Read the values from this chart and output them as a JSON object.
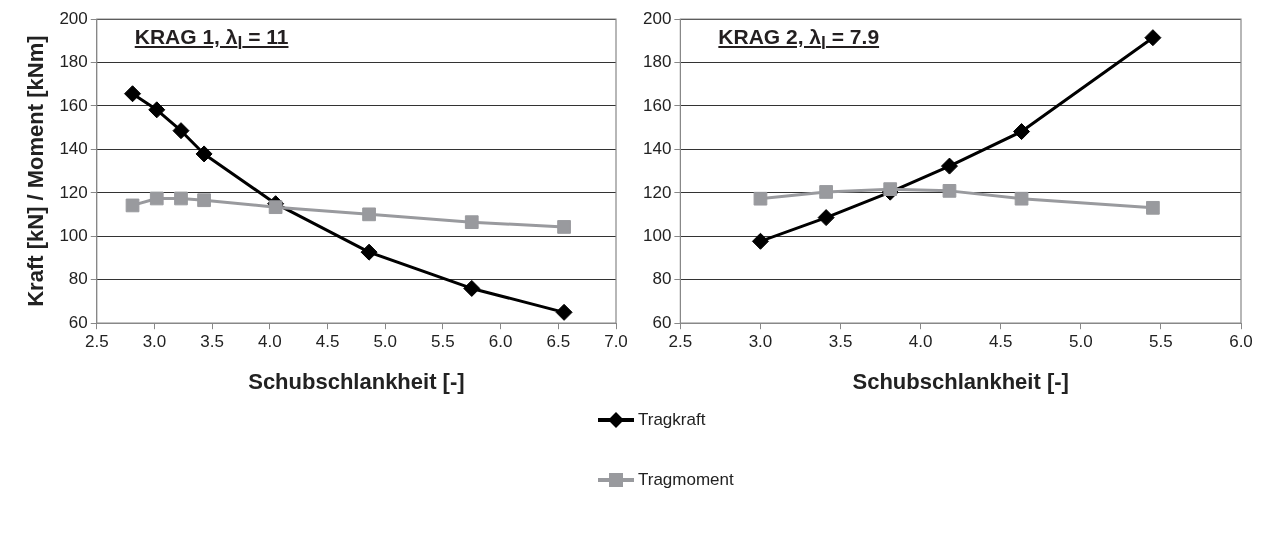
{
  "chart_data": [
    {
      "type": "line",
      "title": "KRAG 1, λ$_{l}$ = 11",
      "xlabel": "Schubschlankheit [-]",
      "ylabel": "Kraft [kN] / Moment [kNm]",
      "xlim": [
        2.5,
        7.0
      ],
      "xticks": [
        {
          "value": 2.5,
          "label": "2.5"
        },
        {
          "value": 3,
          "label": "3.0"
        },
        {
          "value": 3.5,
          "label": "3.5"
        },
        {
          "value": 4,
          "label": "4.0"
        },
        {
          "value": 4.5,
          "label": "4.5"
        },
        {
          "value": 5,
          "label": "5.0"
        },
        {
          "value": 5.5,
          "label": "5.5"
        },
        {
          "value": 6,
          "label": "6.0"
        },
        {
          "value": 6.5,
          "label": "6.5"
        },
        {
          "value": 7,
          "label": "7.0"
        }
      ],
      "ylim": [
        60,
        200
      ],
      "yticks": [
        60,
        80,
        100,
        120,
        140,
        160,
        180,
        200
      ],
      "grid": "y",
      "legend": "bottom",
      "line_style": "solid",
      "series": [
        {
          "name": "Tragkraft",
          "color": "#000000",
          "marker": "diamond",
          "x": [
            2.81,
            3.02,
            3.23,
            3.43,
            4.05,
            4.86,
            5.75,
            6.55
          ],
          "values": [
            165.6,
            158.2,
            148.6,
            137.9,
            115,
            92.7,
            76,
            65
          ]
        },
        {
          "name": "Tragmoment",
          "color": "#999a9e",
          "marker": "square",
          "x": [
            2.81,
            3.02,
            3.23,
            3.43,
            4.05,
            4.86,
            5.75,
            6.55
          ],
          "values": [
            114.2,
            117.4,
            117.4,
            116.6,
            113.4,
            110.1,
            106.5,
            104.3
          ]
        }
      ]
    },
    {
      "type": "line",
      "title": "KRAG 2, λ$_{l}$ = 7.9",
      "xlabel": "Schubschlankheit [-]",
      "xlim": [
        2.5,
        6.0
      ],
      "xticks": [
        {
          "value": 2.5,
          "label": "2.5"
        },
        {
          "value": 3,
          "label": "3.0"
        },
        {
          "value": 3.5,
          "label": "3.5"
        },
        {
          "value": 4,
          "label": "4.0"
        },
        {
          "value": 4.5,
          "label": "4.5"
        },
        {
          "value": 5,
          "label": "5.0"
        },
        {
          "value": 5.5,
          "label": "5.5"
        },
        {
          "value": 6,
          "label": "6.0"
        }
      ],
      "ylim": [
        60,
        200
      ],
      "yticks": [
        60,
        80,
        100,
        120,
        140,
        160,
        180,
        200
      ],
      "grid": "y",
      "line_style": "solid",
      "series": [
        {
          "color": "#000000",
          "marker": "diamond",
          "x": [
            3.0,
            3.41,
            3.81,
            4.18,
            4.63,
            5.45
          ],
          "values": [
            97.7,
            108.6,
            120.3,
            132.3,
            148.2,
            191.4
          ]
        },
        {
          "color": "#999a9e",
          "marker": "square",
          "x": [
            3.0,
            3.41,
            3.81,
            4.18,
            4.63,
            5.45
          ],
          "values": [
            117.3,
            120.4,
            121.7,
            120.9,
            117.3,
            113.1
          ]
        }
      ]
    }
  ]
}
